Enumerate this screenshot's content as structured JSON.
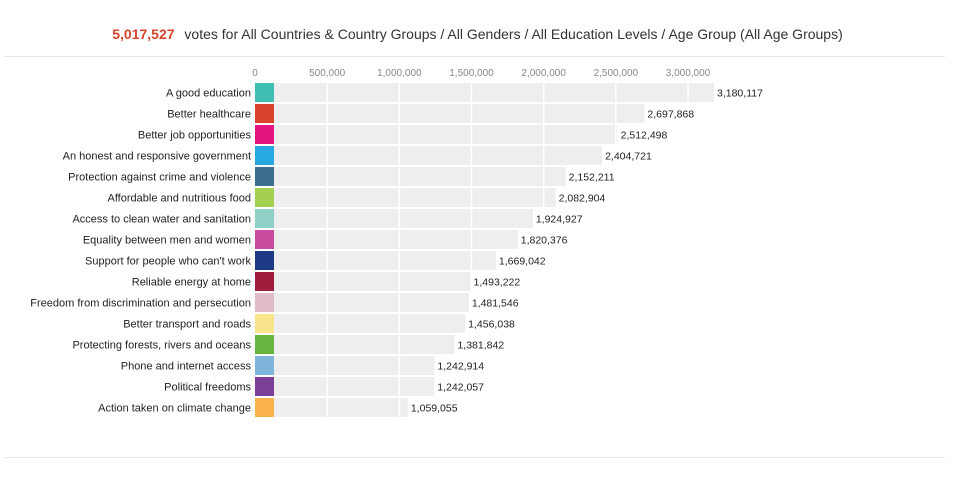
{
  "header": {
    "vote_count": "5,017,527",
    "description": "votes for All Countries & Country Groups / All Genders / All Education Levels / Age Group (All Age Groups)"
  },
  "chart_data": {
    "type": "bar",
    "orientation": "horizontal",
    "xlim": [
      0,
      3180117
    ],
    "ticks": [
      0,
      500000,
      1000000,
      1500000,
      2000000,
      2500000,
      3000000
    ],
    "tick_labels": [
      "0",
      "500,000",
      "1,000,000",
      "1,500,000",
      "2,000,000",
      "2,500,000",
      "3,000,000"
    ],
    "grid": true,
    "categories": [
      "A good education",
      "Better healthcare",
      "Better job opportunities",
      "An honest and responsive government",
      "Protection against crime and violence",
      "Affordable and nutritious food",
      "Access to clean water and sanitation",
      "Equality between men and women",
      "Support for people who can't work",
      "Reliable energy at home",
      "Freedom from discrimination and persecution",
      "Better transport and roads",
      "Protecting forests, rivers and oceans",
      "Phone and internet access",
      "Political freedoms",
      "Action taken on climate change"
    ],
    "values": [
      3180117,
      2697868,
      2512498,
      2404721,
      2152211,
      2082904,
      1924927,
      1820376,
      1669042,
      1493222,
      1481546,
      1456038,
      1381842,
      1242914,
      1242057,
      1059055
    ],
    "value_labels": [
      "3,180,117",
      "2,697,868",
      "2,512,498",
      "2,404,721",
      "2,152,211",
      "2,082,904",
      "1,924,927",
      "1,820,376",
      "1,669,042",
      "1,493,222",
      "1,481,546",
      "1,456,038",
      "1,381,842",
      "1,242,914",
      "1,242,057",
      "1,059,055"
    ],
    "swatch_colors": [
      "#3fbfb4",
      "#d9432b",
      "#e5157f",
      "#25a9e0",
      "#3c6f8f",
      "#a4d051",
      "#8fd0c6",
      "#c94b9d",
      "#1e3a87",
      "#a01c3d",
      "#e0bccb",
      "#f8e58b",
      "#67b640",
      "#7fb4dc",
      "#7b3f98",
      "#f9b24c"
    ],
    "bar_color": "#eeeeee"
  }
}
